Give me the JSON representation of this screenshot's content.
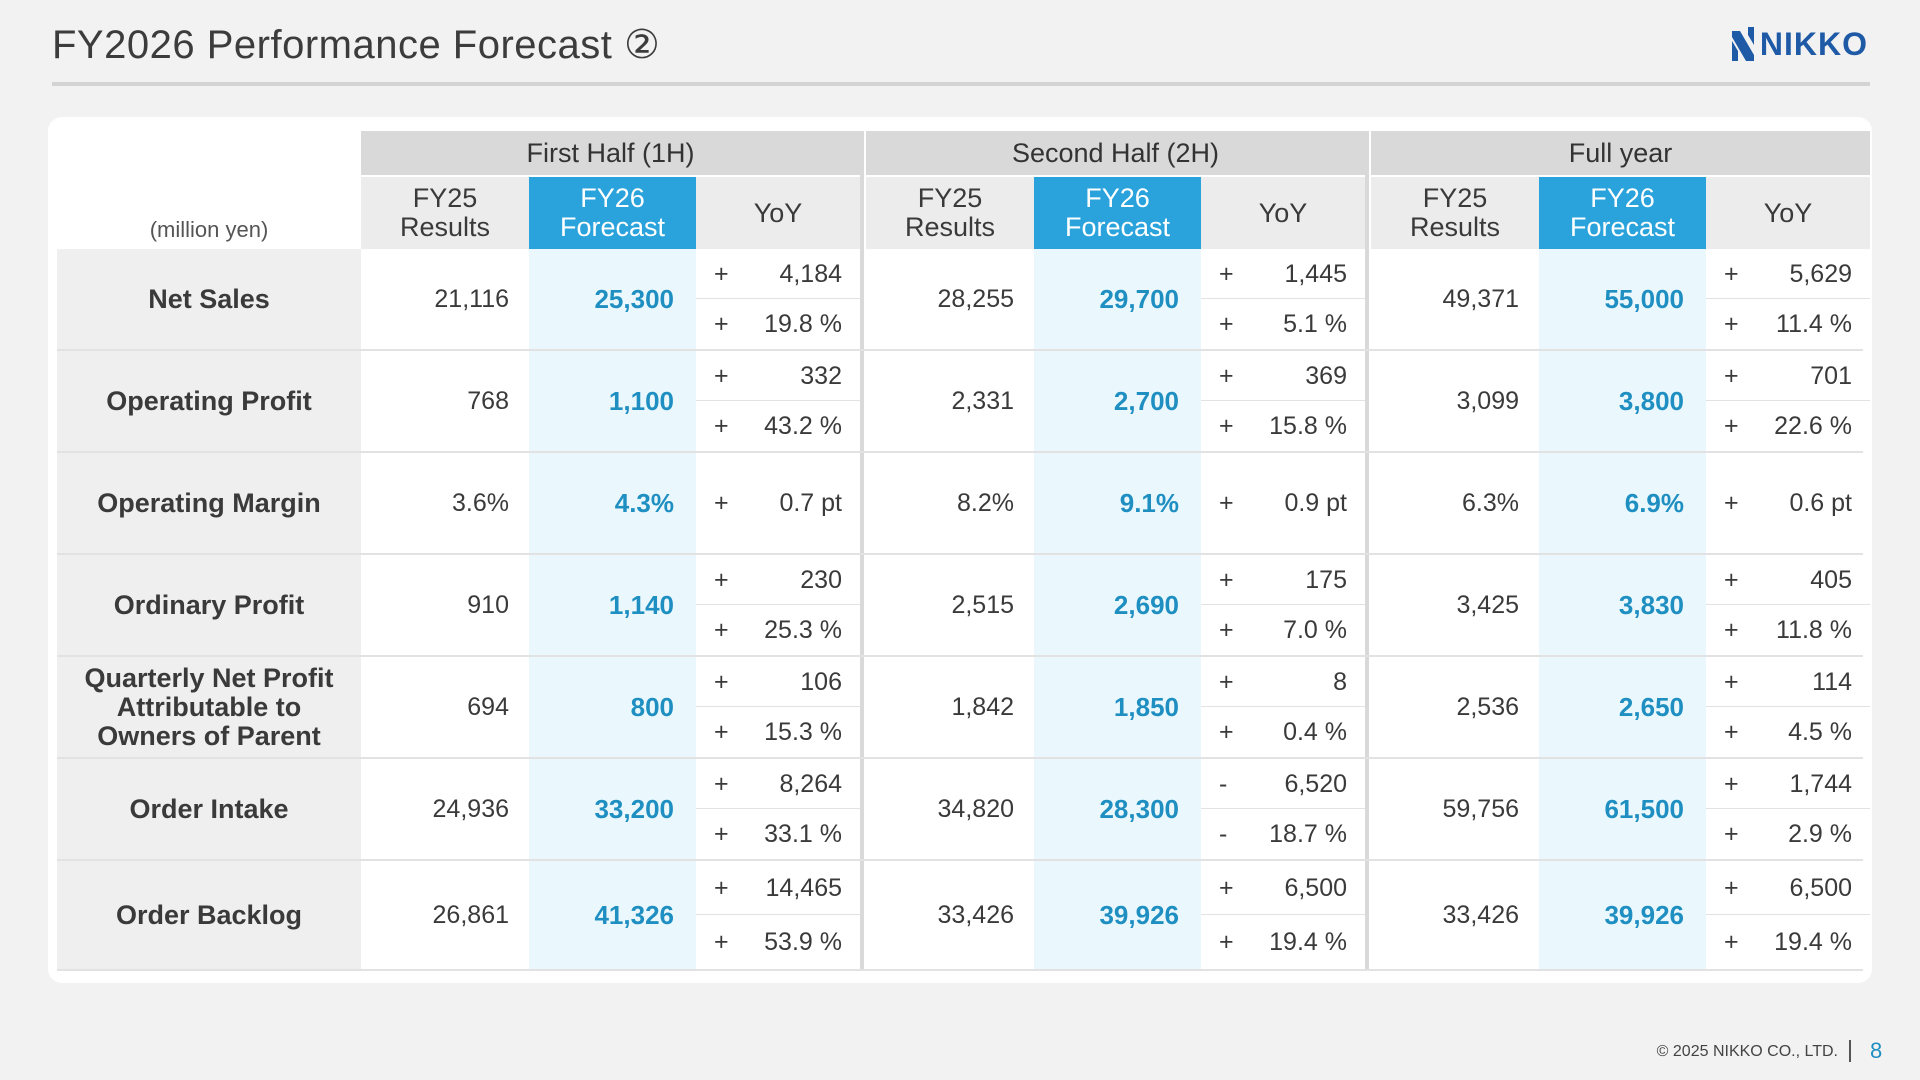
{
  "header": {
    "title": "FY2026 Performance Forecast ②",
    "logo_text": "NIKKO"
  },
  "table": {
    "unit": "(million yen)",
    "groups": [
      "First Half (1H)",
      "Second Half (2H)",
      "Full year"
    ],
    "subheaders": [
      {
        "l1": "FY25",
        "l2": "Results"
      },
      {
        "l1": "FY26",
        "l2": "Forecast"
      },
      {
        "l1": "YoY",
        "l2": ""
      }
    ],
    "rows": [
      {
        "label": [
          "Net Sales"
        ],
        "periods": [
          {
            "results": "21,116",
            "forecast": "25,300",
            "yoy": [
              {
                "s": "+",
                "v": "4,184"
              },
              {
                "s": "+",
                "v": "19.8 %"
              }
            ]
          },
          {
            "results": "28,255",
            "forecast": "29,700",
            "yoy": [
              {
                "s": "+",
                "v": "1,445"
              },
              {
                "s": "+",
                "v": "5.1 %"
              }
            ]
          },
          {
            "results": "49,371",
            "forecast": "55,000",
            "yoy": [
              {
                "s": "+",
                "v": "5,629"
              },
              {
                "s": "+",
                "v": "11.4 %"
              }
            ]
          }
        ]
      },
      {
        "label": [
          "Operating Profit"
        ],
        "periods": [
          {
            "results": "768",
            "forecast": "1,100",
            "yoy": [
              {
                "s": "+",
                "v": "332"
              },
              {
                "s": "+",
                "v": "43.2 %"
              }
            ]
          },
          {
            "results": "2,331",
            "forecast": "2,700",
            "yoy": [
              {
                "s": "+",
                "v": "369"
              },
              {
                "s": "+",
                "v": "15.8 %"
              }
            ]
          },
          {
            "results": "3,099",
            "forecast": "3,800",
            "yoy": [
              {
                "s": "+",
                "v": "701"
              },
              {
                "s": "+",
                "v": "22.6 %"
              }
            ]
          }
        ]
      },
      {
        "label": [
          "Operating Margin"
        ],
        "periods": [
          {
            "results": "3.6%",
            "forecast": "4.3%",
            "yoy": [
              {
                "s": "+",
                "v": "0.7 pt"
              }
            ]
          },
          {
            "results": "8.2%",
            "forecast": "9.1%",
            "yoy": [
              {
                "s": "+",
                "v": "0.9 pt"
              }
            ]
          },
          {
            "results": "6.3%",
            "forecast": "6.9%",
            "yoy": [
              {
                "s": "+",
                "v": "0.6 pt"
              }
            ]
          }
        ]
      },
      {
        "label": [
          "Ordinary Profit"
        ],
        "periods": [
          {
            "results": "910",
            "forecast": "1,140",
            "yoy": [
              {
                "s": "+",
                "v": "230"
              },
              {
                "s": "+",
                "v": "25.3 %"
              }
            ]
          },
          {
            "results": "2,515",
            "forecast": "2,690",
            "yoy": [
              {
                "s": "+",
                "v": "175"
              },
              {
                "s": "+",
                "v": "7.0 %"
              }
            ]
          },
          {
            "results": "3,425",
            "forecast": "3,830",
            "yoy": [
              {
                "s": "+",
                "v": "405"
              },
              {
                "s": "+",
                "v": "11.8 %"
              }
            ]
          }
        ]
      },
      {
        "label": [
          "Quarterly Net Profit",
          "Attributable to",
          "Owners of Parent"
        ],
        "periods": [
          {
            "results": "694",
            "forecast": "800",
            "yoy": [
              {
                "s": "+",
                "v": "106"
              },
              {
                "s": "+",
                "v": "15.3 %"
              }
            ]
          },
          {
            "results": "1,842",
            "forecast": "1,850",
            "yoy": [
              {
                "s": "+",
                "v": "8"
              },
              {
                "s": "+",
                "v": "0.4 %"
              }
            ]
          },
          {
            "results": "2,536",
            "forecast": "2,650",
            "yoy": [
              {
                "s": "+",
                "v": "114"
              },
              {
                "s": "+",
                "v": "4.5 %"
              }
            ]
          }
        ]
      },
      {
        "label": [
          "Order Intake"
        ],
        "periods": [
          {
            "results": "24,936",
            "forecast": "33,200",
            "yoy": [
              {
                "s": "+",
                "v": "8,264"
              },
              {
                "s": "+",
                "v": "33.1 %"
              }
            ]
          },
          {
            "results": "34,820",
            "forecast": "28,300",
            "yoy": [
              {
                "s": "-",
                "v": "6,520"
              },
              {
                "s": "-",
                "v": "18.7 %"
              }
            ]
          },
          {
            "results": "59,756",
            "forecast": "61,500",
            "yoy": [
              {
                "s": "+",
                "v": "1,744"
              },
              {
                "s": "+",
                "v": "2.9 %"
              }
            ]
          }
        ]
      },
      {
        "label": [
          "Order Backlog"
        ],
        "periods": [
          {
            "results": "26,861",
            "forecast": "41,326",
            "yoy": [
              {
                "s": "+",
                "v": "14,465"
              },
              {
                "s": "+",
                "v": "53.9 %"
              }
            ]
          },
          {
            "results": "33,426",
            "forecast": "39,926",
            "yoy": [
              {
                "s": "+",
                "v": "6,500"
              },
              {
                "s": "+",
                "v": "19.4 %"
              }
            ]
          },
          {
            "results": "33,426",
            "forecast": "39,926",
            "yoy": [
              {
                "s": "+",
                "v": "6,500"
              },
              {
                "s": "+",
                "v": "19.4 %"
              }
            ]
          }
        ]
      }
    ]
  },
  "footer": {
    "copyright": "© 2025 NIKKO CO., LTD.",
    "page": "8"
  },
  "colors": {
    "accent": "#2aa3dc",
    "forecast_text": "#1f8fc2",
    "forecast_bg": "#eaf8fd"
  }
}
